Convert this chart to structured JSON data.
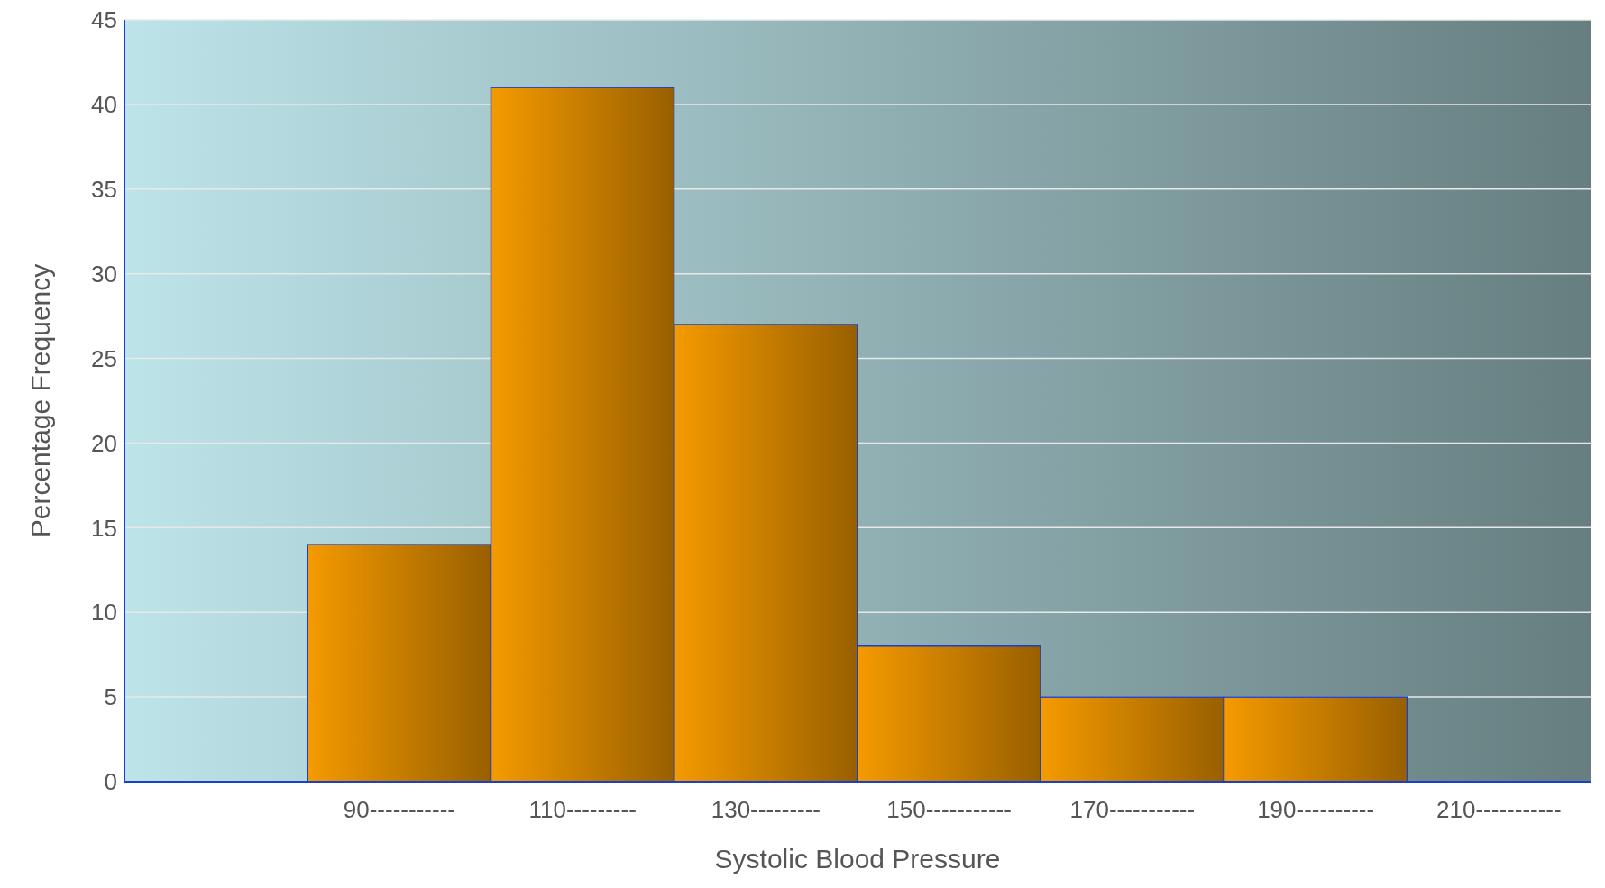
{
  "chart_data": {
    "type": "bar",
    "xlabel": "Systolic Blood Pressure",
    "ylabel": "Percentage Frequency",
    "categories": [
      null,
      "90-----------",
      "110---------",
      "130---------",
      "150-----------",
      "170-----------",
      "190----------",
      "210-----------"
    ],
    "values": [
      null,
      14,
      41,
      27,
      8,
      5,
      5,
      null
    ],
    "color": "#f59a00",
    "ylim": [
      0,
      45
    ],
    "yticks": [
      0,
      5,
      10,
      15,
      20,
      25,
      30,
      35,
      40,
      45
    ],
    "grid": "y"
  }
}
